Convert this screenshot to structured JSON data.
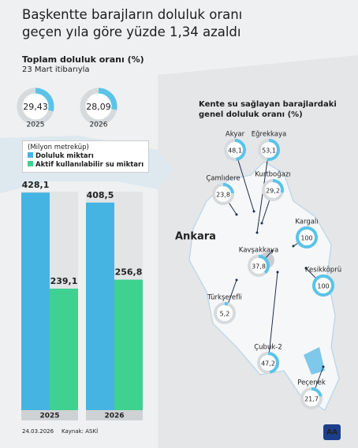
{
  "title": "Başkentte barajların doluluk oranı geçen yıla göre yüzde 1,34 azaldı",
  "chart_data": [
    {
      "type": "donut",
      "title": "Toplam doluluk oranı (%)",
      "subtitle": "23 Mart itibarıyla",
      "categories": [
        "2025",
        "2026"
      ],
      "values": [
        29.43,
        28.09
      ],
      "value_labels": [
        "29,43",
        "28,09"
      ],
      "color": "#5bc3e8",
      "ylim": [
        0,
        100
      ]
    },
    {
      "type": "bar",
      "subtitle": "(Milyon metreküp)",
      "categories": [
        "2025",
        "2026"
      ],
      "series": [
        {
          "name": "Doluluk miktarı",
          "color": "#45b4e2",
          "values": [
            428.1,
            408.5
          ],
          "value_labels": [
            "428,1",
            "408,5"
          ]
        },
        {
          "name": "Aktif kullanılabilir su miktarı",
          "color": "#3ed18f",
          "values": [
            239.1,
            256.8
          ],
          "value_labels": [
            "239,1",
            "256,8"
          ]
        }
      ],
      "ylim": [
        0,
        430
      ]
    },
    {
      "type": "map-donut",
      "title": "Kente su sağlayan barajlardaki genel doluluk oranı (%)",
      "categories": [
        "Akyar",
        "Eğrekkaya",
        "Çamlıdere",
        "Kurtboğazı",
        "Kargalı",
        "Kavşakkaya",
        "Kesikköprü",
        "Türkşerefli",
        "Çubuk-2",
        "Peçenek"
      ],
      "values": [
        48.1,
        53.1,
        23.8,
        29.2,
        100,
        37.8,
        100,
        5.2,
        47.2,
        21.7
      ],
      "value_labels": [
        "48,1",
        "53,1",
        "23,8",
        "29,2",
        "100",
        "37,8",
        "100",
        "5,2",
        "47,2",
        "21,7"
      ],
      "color": "#5bc3e8",
      "ylim": [
        0,
        100
      ]
    }
  ],
  "map_label": "Ankara",
  "footer": {
    "date": "24.03.2026",
    "source": "Kaynak: ASKİ"
  }
}
